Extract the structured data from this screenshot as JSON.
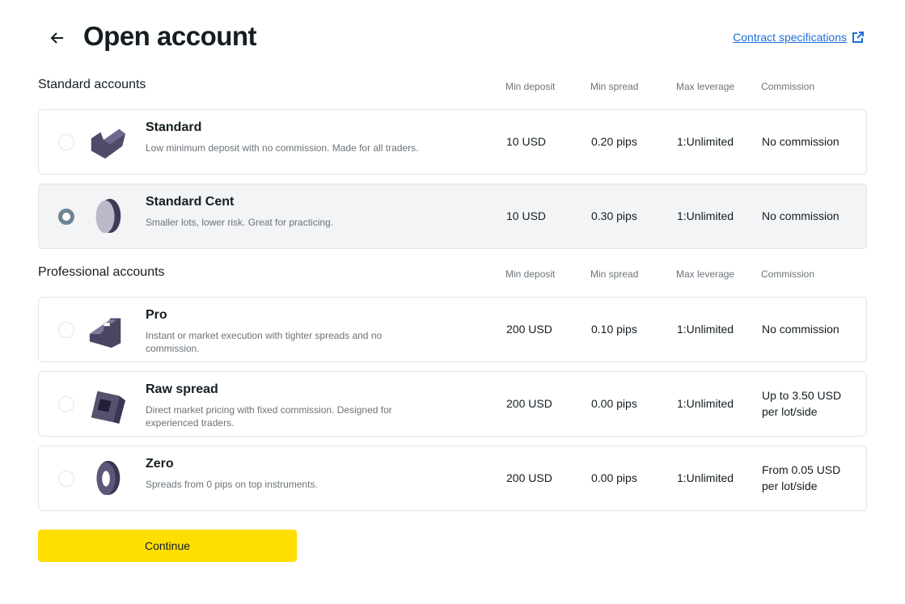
{
  "header": {
    "title": "Open account",
    "contract_link": "Contract specifications"
  },
  "columns": [
    "Min deposit",
    "Min spread",
    "Max leverage",
    "Commission"
  ],
  "sections": [
    {
      "title": "Standard accounts",
      "accounts": [
        {
          "name": "Standard",
          "desc": "Low minimum deposit with no commission. Made for all traders.",
          "deposit": "10 USD",
          "spread": "0.20 pips",
          "leverage": "1:Unlimited",
          "commission": "No commission",
          "selected": false,
          "icon": "bent-block-icon"
        },
        {
          "name": "Standard Cent",
          "desc": "Smaller lots, lower risk. Great for practicing.",
          "deposit": "10 USD",
          "spread": "0.30 pips",
          "leverage": "1:Unlimited",
          "commission": "No commission",
          "selected": true,
          "icon": "disc-icon"
        }
      ]
    },
    {
      "title": "Professional accounts",
      "accounts": [
        {
          "name": "Pro",
          "desc": "Instant or market execution with tighter spreads and no commission.",
          "deposit": "200 USD",
          "spread": "0.10 pips",
          "leverage": "1:Unlimited",
          "commission": "No commission",
          "selected": false,
          "icon": "stairs-icon"
        },
        {
          "name": "Raw spread",
          "desc": "Direct market pricing with fixed commission. Designed for experienced traders.",
          "deposit": "200 USD",
          "spread": "0.00 pips",
          "leverage": "1:Unlimited",
          "commission": "Up to 3.50 USD per lot/side",
          "selected": false,
          "icon": "frame-block-icon"
        },
        {
          "name": "Zero",
          "desc": "Spreads from 0 pips on top instruments.",
          "deposit": "200 USD",
          "spread": "0.00 pips",
          "leverage": "1:Unlimited",
          "commission": "From 0.05 USD per lot/side",
          "selected": false,
          "icon": "ring-icon"
        }
      ]
    }
  ],
  "continue_label": "Continue",
  "colors": {
    "accent": "#ffde02",
    "link": "#1d6fd3",
    "radio_selected": "#6d8594"
  }
}
